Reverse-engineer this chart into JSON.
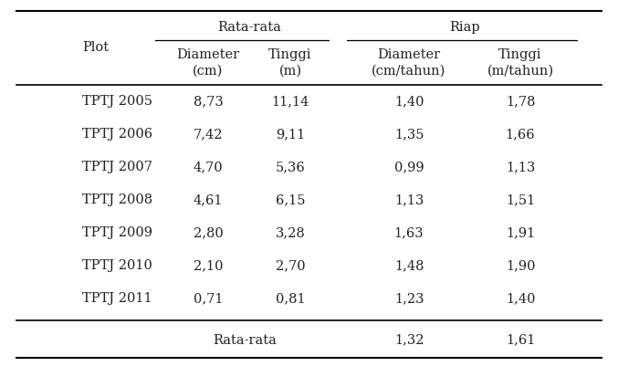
{
  "bg_color": "#ffffff",
  "text_color": "#222222",
  "col1_header": "Plot",
  "group1_header": "Rata-rata",
  "group2_header": "Riap",
  "col_headers": [
    "Diameter\n(cm)",
    "Tinggi\n(m)",
    "Diameter\n(cm/tahun)",
    "Tinggi\n(m/tahun)"
  ],
  "col_headers_line1": [
    "Diameter",
    "Tinggi",
    "Diameter",
    "Tinggi"
  ],
  "col_headers_line2": [
    "(cm)",
    "(m)",
    "(cm/tahun)",
    "(m/tahun)"
  ],
  "rows": [
    [
      "TPTJ 2005",
      "8,73",
      "11,14",
      "1,40",
      "1,78"
    ],
    [
      "TPTJ 2006",
      "7,42",
      "9,11",
      "1,35",
      "1,66"
    ],
    [
      "TPTJ 2007",
      "4,70",
      "5,36",
      "0,99",
      "1,13"
    ],
    [
      "TPTJ 2008",
      "4,61",
      "6,15",
      "1,13",
      "1,51"
    ],
    [
      "TPTJ 2009",
      "2,80",
      "3,28",
      "1,63",
      "1,91"
    ],
    [
      "TPTJ 2010",
      "2,10",
      "2,70",
      "1,48",
      "1,90"
    ],
    [
      "TPTJ 2011",
      "0,71",
      "0,81",
      "1,23",
      "1,40"
    ]
  ],
  "footer_label": "Rata-rata",
  "footer_vals": [
    "1,32",
    "1,61"
  ],
  "font_size": 10.5,
  "font_family": "DejaVu Serif"
}
